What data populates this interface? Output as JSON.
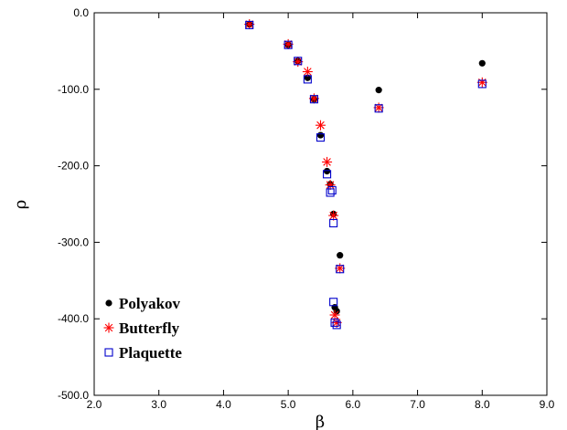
{
  "chart_data": {
    "type": "scatter",
    "title": "",
    "xlabel": "β",
    "ylabel": "ρ",
    "xlim": [
      2.0,
      9.0
    ],
    "ylim": [
      -500.0,
      0.0
    ],
    "x_ticks": [
      "2.0",
      "3.0",
      "4.0",
      "5.0",
      "6.0",
      "7.0",
      "8.0",
      "9.0"
    ],
    "y_ticks": [
      "0.0",
      "-100.0",
      "-200.0",
      "-300.0",
      "-400.0",
      "-500.0"
    ],
    "x_tick_values": [
      2,
      3,
      4,
      5,
      6,
      7,
      8,
      9
    ],
    "y_tick_values": [
      0,
      -100,
      -200,
      -300,
      -400,
      -500
    ],
    "grid": false,
    "legend_position": "bottom-left",
    "series": [
      {
        "name": "Polyakov",
        "marker": "filled-circle",
        "color": "#000000",
        "points": [
          {
            "x": 4.4,
            "y": -15
          },
          {
            "x": 5.0,
            "y": -42
          },
          {
            "x": 5.15,
            "y": -63
          },
          {
            "x": 5.3,
            "y": -85
          },
          {
            "x": 5.4,
            "y": -113
          },
          {
            "x": 5.5,
            "y": -160
          },
          {
            "x": 5.6,
            "y": -207
          },
          {
            "x": 5.65,
            "y": -224
          },
          {
            "x": 5.7,
            "y": -263
          },
          {
            "x": 5.72,
            "y": -385
          },
          {
            "x": 5.75,
            "y": -390
          },
          {
            "x": 5.8,
            "y": -317
          },
          {
            "x": 6.4,
            "y": -101
          },
          {
            "x": 8.0,
            "y": -66
          }
        ]
      },
      {
        "name": "Butterfly",
        "marker": "asterisk",
        "color": "#ff0000",
        "points": [
          {
            "x": 4.4,
            "y": -15
          },
          {
            "x": 5.0,
            "y": -41
          },
          {
            "x": 5.15,
            "y": -64
          },
          {
            "x": 5.3,
            "y": -77
          },
          {
            "x": 5.4,
            "y": -112
          },
          {
            "x": 5.5,
            "y": -147
          },
          {
            "x": 5.6,
            "y": -195
          },
          {
            "x": 5.65,
            "y": -225
          },
          {
            "x": 5.7,
            "y": -265
          },
          {
            "x": 5.72,
            "y": -395
          },
          {
            "x": 5.75,
            "y": -405
          },
          {
            "x": 5.8,
            "y": -334
          },
          {
            "x": 6.4,
            "y": -124
          },
          {
            "x": 8.0,
            "y": -91
          }
        ]
      },
      {
        "name": "Plaquette",
        "marker": "open-square",
        "color": "#0000cc",
        "points": [
          {
            "x": 4.4,
            "y": -16
          },
          {
            "x": 5.0,
            "y": -42
          },
          {
            "x": 5.15,
            "y": -63
          },
          {
            "x": 5.3,
            "y": -87
          },
          {
            "x": 5.4,
            "y": -113
          },
          {
            "x": 5.5,
            "y": -163
          },
          {
            "x": 5.6,
            "y": -211
          },
          {
            "x": 5.65,
            "y": -235
          },
          {
            "x": 5.68,
            "y": -232
          },
          {
            "x": 5.7,
            "y": -275
          },
          {
            "x": 5.7,
            "y": -378
          },
          {
            "x": 5.72,
            "y": -405
          },
          {
            "x": 5.75,
            "y": -408
          },
          {
            "x": 5.8,
            "y": -335
          },
          {
            "x": 6.4,
            "y": -125
          },
          {
            "x": 8.0,
            "y": -93
          }
        ]
      }
    ]
  }
}
